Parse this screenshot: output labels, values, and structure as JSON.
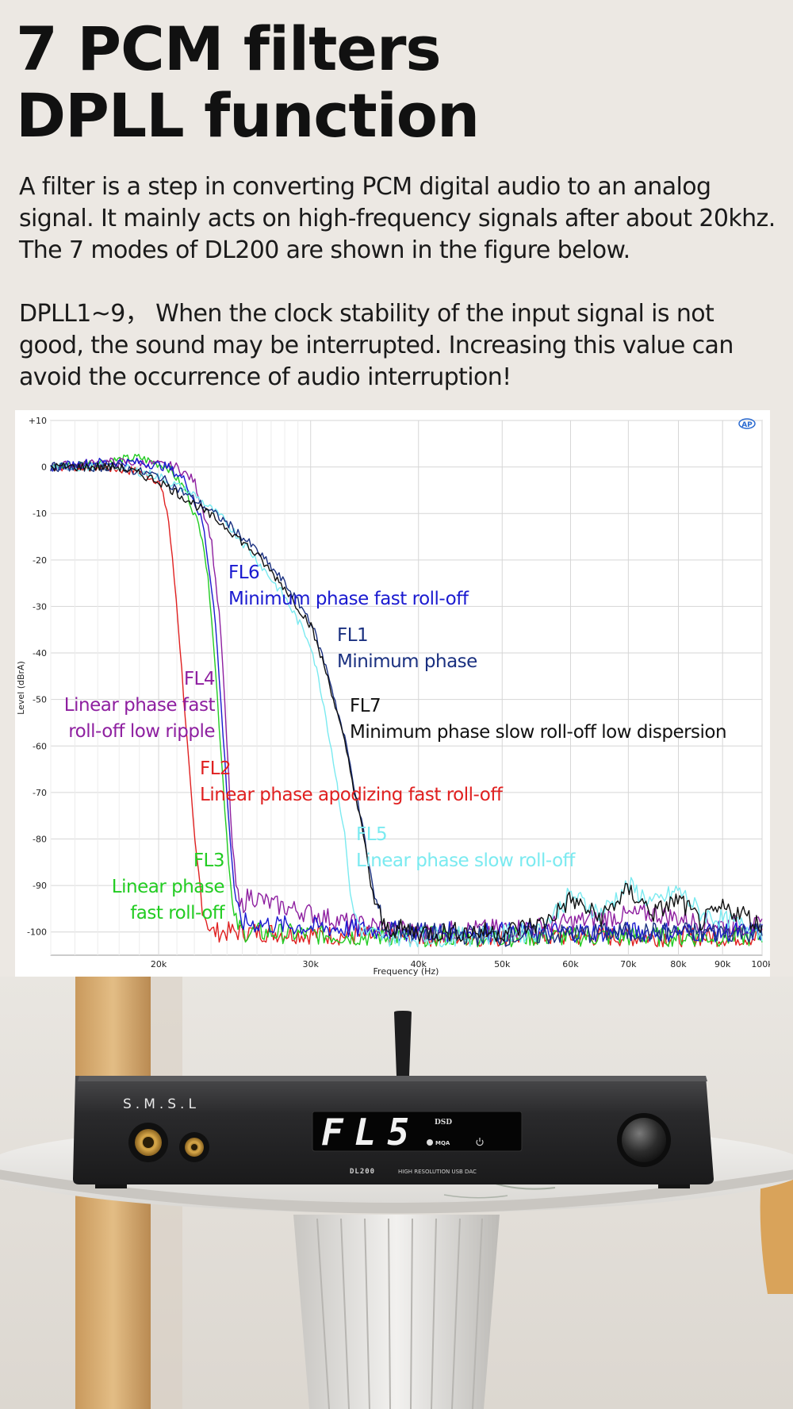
{
  "headline": {
    "line1": "7 PCM filters",
    "line2": "DPLL function"
  },
  "intro": {
    "paragraph1": "A filter is a step in converting PCM digital audio to an analog signal. It mainly acts on high-frequency signals after about 20khz. The 7 modes of DL200 are shown in the figure below.",
    "paragraph2": "DPLL1~9， When the clock stability of the input signal is not good, the sound may be interrupted. Increasing this value can avoid the occurrence of audio interruption!"
  },
  "chart_data": {
    "type": "line",
    "title": "",
    "xlabel": "Frequency (Hz)",
    "ylabel": "Level (dBrA)",
    "xscale": "log",
    "xlim": [
      15000,
      100000
    ],
    "ylim": [
      -105,
      10
    ],
    "grid": true,
    "x_ticks": [
      {
        "v": 20000,
        "label": "20k"
      },
      {
        "v": 30000,
        "label": "30k"
      },
      {
        "v": 40000,
        "label": "40k"
      },
      {
        "v": 50000,
        "label": "50k"
      },
      {
        "v": 60000,
        "label": "60k"
      },
      {
        "v": 70000,
        "label": "70k"
      },
      {
        "v": 80000,
        "label": "80k"
      },
      {
        "v": 90000,
        "label": "90k"
      },
      {
        "v": 100000,
        "label": "100k"
      }
    ],
    "y_ticks": [
      {
        "v": 10,
        "label": "+10"
      },
      {
        "v": 0,
        "label": "0"
      },
      {
        "v": -10,
        "label": "-10"
      },
      {
        "v": -20,
        "label": "-20"
      },
      {
        "v": -30,
        "label": "-30"
      },
      {
        "v": -40,
        "label": "-40"
      },
      {
        "v": -50,
        "label": "-50"
      },
      {
        "v": -60,
        "label": "-60"
      },
      {
        "v": -70,
        "label": "-70"
      },
      {
        "v": -80,
        "label": "-80"
      },
      {
        "v": -90,
        "label": "-90"
      },
      {
        "v": -100,
        "label": "-100"
      }
    ],
    "series": [
      {
        "name": "FL2",
        "description": "Linear phase apodizing fast roll-off",
        "color": "#e02020",
        "x": [
          15000,
          17000,
          19000,
          20000,
          20500,
          21000,
          21500,
          22000,
          22500,
          23000,
          26000,
          35000,
          50000,
          70000,
          100000
        ],
        "y": [
          0,
          0,
          -1,
          -3,
          -10,
          -30,
          -55,
          -80,
          -95,
          -100,
          -100,
          -101,
          -101,
          -101,
          -101
        ]
      },
      {
        "name": "FL3",
        "description": "Linear phase fast roll-off",
        "color": "#22cc22",
        "x": [
          15000,
          17000,
          19000,
          20500,
          21500,
          22500,
          23000,
          23500,
          24000,
          24400,
          25000,
          35000,
          50000,
          70000,
          100000
        ],
        "y": [
          0,
          1,
          2,
          0,
          -5,
          -15,
          -30,
          -55,
          -80,
          -97,
          -100,
          -101,
          -101,
          -101,
          -101
        ]
      },
      {
        "name": "FL4",
        "description": "Linear phase fast roll-off low ripple",
        "color": "#8e1fa0",
        "x": [
          15000,
          17000,
          19000,
          21000,
          22000,
          23000,
          23600,
          24000,
          24400,
          24800,
          25500,
          27000,
          30000,
          33000,
          40000,
          55000,
          65000,
          75000,
          85000,
          100000
        ],
        "y": [
          0,
          1,
          1,
          0,
          -3,
          -15,
          -35,
          -60,
          -85,
          -95,
          -92,
          -94,
          -96,
          -98,
          -100,
          -99,
          -97,
          -96,
          -98,
          -99
        ]
      },
      {
        "name": "FL6",
        "description": "Minimum phase fast roll-off",
        "color": "#1a1ad0",
        "x": [
          15000,
          17000,
          19000,
          20500,
          21500,
          22500,
          23200,
          23700,
          24200,
          24600,
          25000,
          30000,
          40000,
          55000,
          70000,
          100000
        ],
        "y": [
          0,
          1,
          1,
          0,
          -3,
          -12,
          -30,
          -55,
          -80,
          -95,
          -98,
          -99,
          -100,
          -100,
          -100,
          -100
        ]
      },
      {
        "name": "FL5",
        "description": "Linear phase slow roll-off",
        "color": "#7aeaf0",
        "x": [
          15000,
          18000,
          20000,
          22000,
          24000,
          26000,
          28000,
          30000,
          31000,
          32000,
          33000,
          33500,
          34500,
          36000,
          45000,
          55000,
          60000,
          65000,
          70000,
          75000,
          80000,
          85000,
          100000
        ],
        "y": [
          0,
          0,
          -2,
          -6,
          -12,
          -20,
          -28,
          -38,
          -50,
          -65,
          -82,
          -95,
          -100,
          -101,
          -101,
          -100,
          -92,
          -96,
          -90,
          -94,
          -91,
          -96,
          -100
        ]
      },
      {
        "name": "FL1",
        "description": "Minimum phase",
        "color": "#1a3080",
        "x": [
          15000,
          18000,
          20000,
          22000,
          24000,
          26000,
          28000,
          30000,
          31500,
          33000,
          34500,
          35500,
          36500,
          40000,
          50000,
          70000,
          100000
        ],
        "y": [
          0,
          0,
          -2,
          -7,
          -12,
          -18,
          -25,
          -33,
          -45,
          -60,
          -78,
          -92,
          -99,
          -100,
          -101,
          -100,
          -100
        ]
      },
      {
        "name": "FL7",
        "description": "Minimum phase slow roll-off low dispersion",
        "color": "#111111",
        "x": [
          15000,
          18000,
          20000,
          22000,
          24000,
          26000,
          28000,
          30000,
          31500,
          33000,
          34500,
          35500,
          36500,
          40000,
          50000,
          56000,
          60000,
          65000,
          70000,
          75000,
          80000,
          85000,
          90000,
          95000,
          100000
        ],
        "y": [
          0,
          0,
          -3,
          -8,
          -13,
          -19,
          -26,
          -34,
          -46,
          -61,
          -79,
          -93,
          -99,
          -100,
          -100,
          -98,
          -93,
          -97,
          -91,
          -96,
          -93,
          -98,
          -95,
          -96,
          -99
        ]
      }
    ],
    "annotations": [
      {
        "id": "FL6",
        "line1": "FL6",
        "line2": "Minimum phase fast roll-off",
        "color": "#1a1ad0"
      },
      {
        "id": "FL1",
        "line1": "FL1",
        "line2": "Minimum phase",
        "color": "#1a3080"
      },
      {
        "id": "FL4",
        "line1": "FL4",
        "line2": "Linear phase fast",
        "line3": "roll-off low ripple",
        "color": "#8e1fa0"
      },
      {
        "id": "FL7",
        "line1": "FL7",
        "line2": "Minimum phase slow roll-off low dispersion",
        "color": "#111111"
      },
      {
        "id": "FL2",
        "line1": "FL2",
        "line2": "Linear phase apodizing fast roll-off",
        "color": "#e02020"
      },
      {
        "id": "FL5",
        "line1": "FL5",
        "line2": "Linear phase slow roll-off",
        "color": "#7aeaf0"
      },
      {
        "id": "FL3",
        "line1": "FL3",
        "line2": "Linear phase",
        "line3": "fast roll-off",
        "color": "#22cc22"
      }
    ]
  },
  "device": {
    "brand": "S.M.S.L",
    "display_text": "FL5",
    "display_badge": "DSD",
    "mqa_badge": "MQA",
    "model_label": "DL200",
    "model_description": "HIGH RESOLUTION USB DAC"
  }
}
